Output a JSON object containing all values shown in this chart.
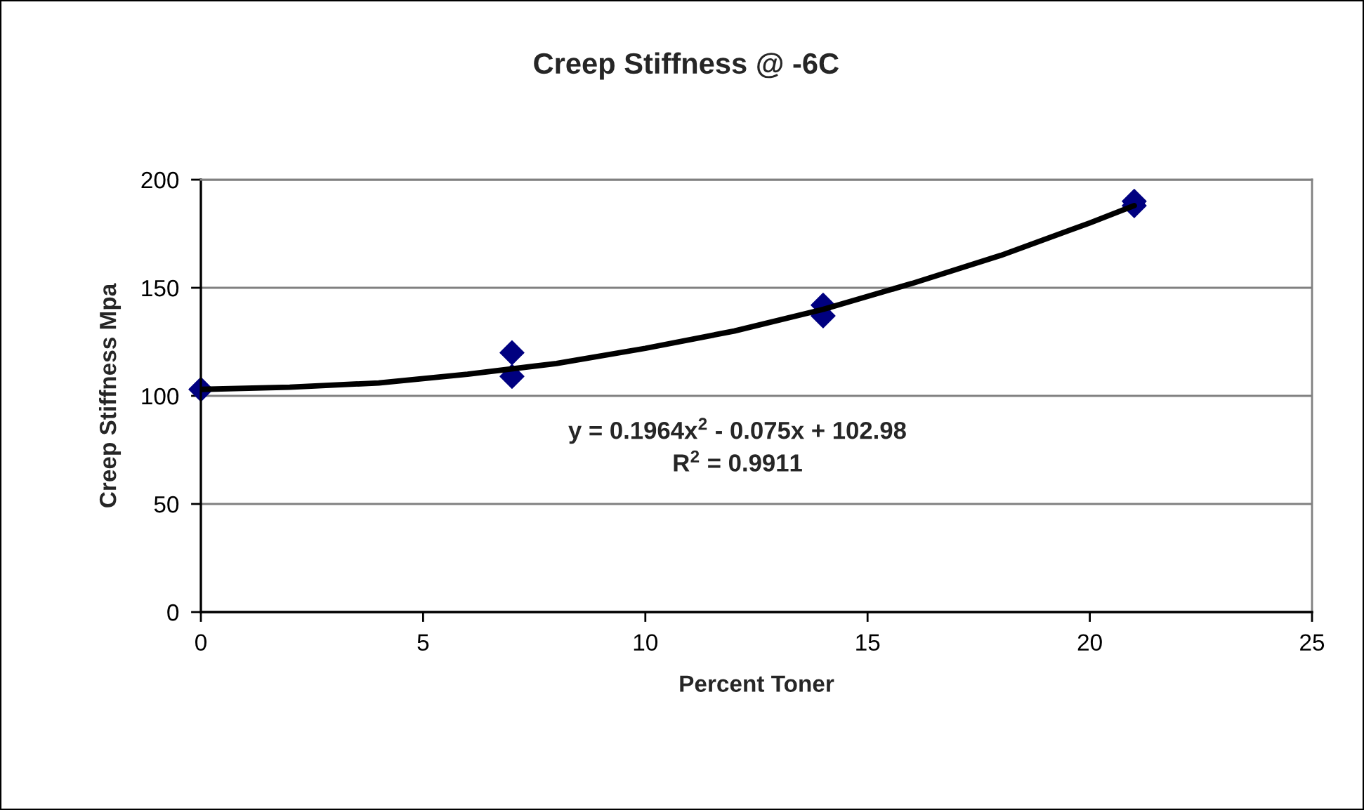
{
  "chart_data": {
    "type": "scatter",
    "title": "Creep Stiffness @ -6C",
    "xlabel": "Percent Toner",
    "ylabel": "Creep Stiffness Mpa",
    "xlim": [
      0,
      25
    ],
    "xticks": [
      0,
      5,
      10,
      15,
      20,
      25
    ],
    "ylim": [
      0,
      200
    ],
    "yticks": [
      0,
      50,
      100,
      150,
      200
    ],
    "grid": "y",
    "marker": "diamond",
    "series": [
      {
        "color": "#000080",
        "x": [
          0,
          7,
          7,
          14,
          14,
          21,
          21
        ],
        "values": [
          103,
          120,
          109,
          142,
          137,
          190,
          188
        ]
      },
      {
        "type": "line",
        "color": "#000000",
        "marker": "none",
        "line_style": "solid",
        "x": [
          0,
          2,
          4,
          6,
          8,
          10,
          12,
          14,
          16,
          18,
          20,
          21
        ],
        "values": [
          103,
          104,
          106,
          110,
          115,
          122,
          130,
          140,
          152,
          165,
          180,
          188
        ]
      }
    ],
    "annotations": [
      "y = 0.1964x$^{2}$ - 0.075x + 102.98",
      "R$^{2}$ = 0.9911"
    ]
  }
}
